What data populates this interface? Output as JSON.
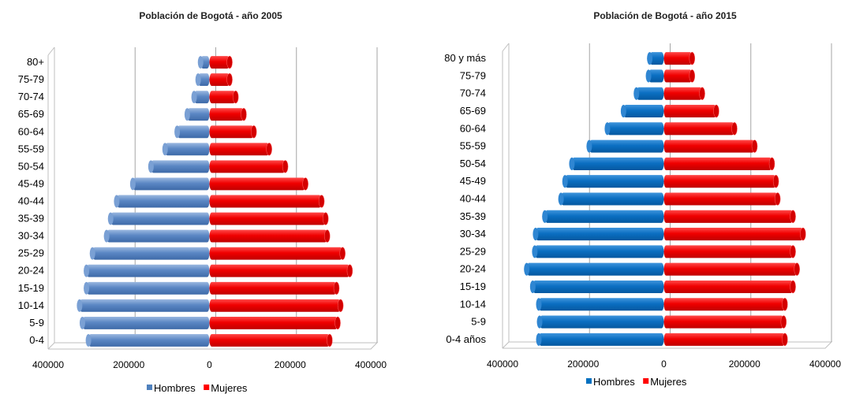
{
  "chart_data": [
    {
      "type": "bar",
      "orientation": "horizontal",
      "variant": "population-pyramid",
      "title": "Población de Bogotá - año 2005",
      "categories": [
        "0-4",
        "5-9",
        "10-14",
        "15-19",
        "20-24",
        "25-29",
        "30-34",
        "35-39",
        "40-44",
        "45-49",
        "50-54",
        "55-59",
        "60-64",
        "65-69",
        "70-74",
        "75-79",
        "80+"
      ],
      "series": [
        {
          "name": "Hombres",
          "color": "#4f81bd",
          "values": [
            300000,
            315000,
            322000,
            305000,
            305000,
            290000,
            255000,
            245000,
            230000,
            190000,
            145000,
            110000,
            80000,
            55000,
            38000,
            28000,
            22000
          ]
        },
        {
          "name": "Mujeres",
          "color": "#ff0000",
          "values": [
            298000,
            318000,
            325000,
            315000,
            348000,
            330000,
            292000,
            288000,
            278000,
            238000,
            188000,
            148000,
            110000,
            85000,
            65000,
            50000,
            50000
          ]
        }
      ],
      "xlim": [
        -400000,
        400000
      ],
      "xticks": [
        "400000",
        "200000",
        "0",
        "200000",
        "400000"
      ],
      "legend": "bottom",
      "grid": true
    },
    {
      "type": "bar",
      "orientation": "horizontal",
      "variant": "population-pyramid",
      "title": "Población de Bogotá - año 2015",
      "categories": [
        "0-4 años",
        "5-9",
        "10-14",
        "15-19",
        "20-24",
        "25-29",
        "30-34",
        "35-39",
        "40-44",
        "45-49",
        "50-54",
        "55-59",
        "60-64",
        "65-69",
        "70-74",
        "75-79",
        "80 y más"
      ],
      "series": [
        {
          "name": "Hombres",
          "color": "#0070c0",
          "values": [
            310000,
            308000,
            310000,
            325000,
            340000,
            320000,
            318000,
            295000,
            255000,
            245000,
            228000,
            185000,
            140000,
            100000,
            68000,
            38000,
            35000
          ]
        },
        {
          "name": "Mujeres",
          "color": "#ff0000",
          "values": [
            300000,
            297000,
            300000,
            320000,
            330000,
            320000,
            345000,
            320000,
            282000,
            278000,
            268000,
            225000,
            175000,
            130000,
            95000,
            70000,
            70000
          ]
        }
      ],
      "xlim": [
        -400000,
        400000
      ],
      "xticks": [
        "400000",
        "200000",
        "0",
        "200000",
        "400000"
      ],
      "legend": "bottom",
      "grid": true
    }
  ]
}
